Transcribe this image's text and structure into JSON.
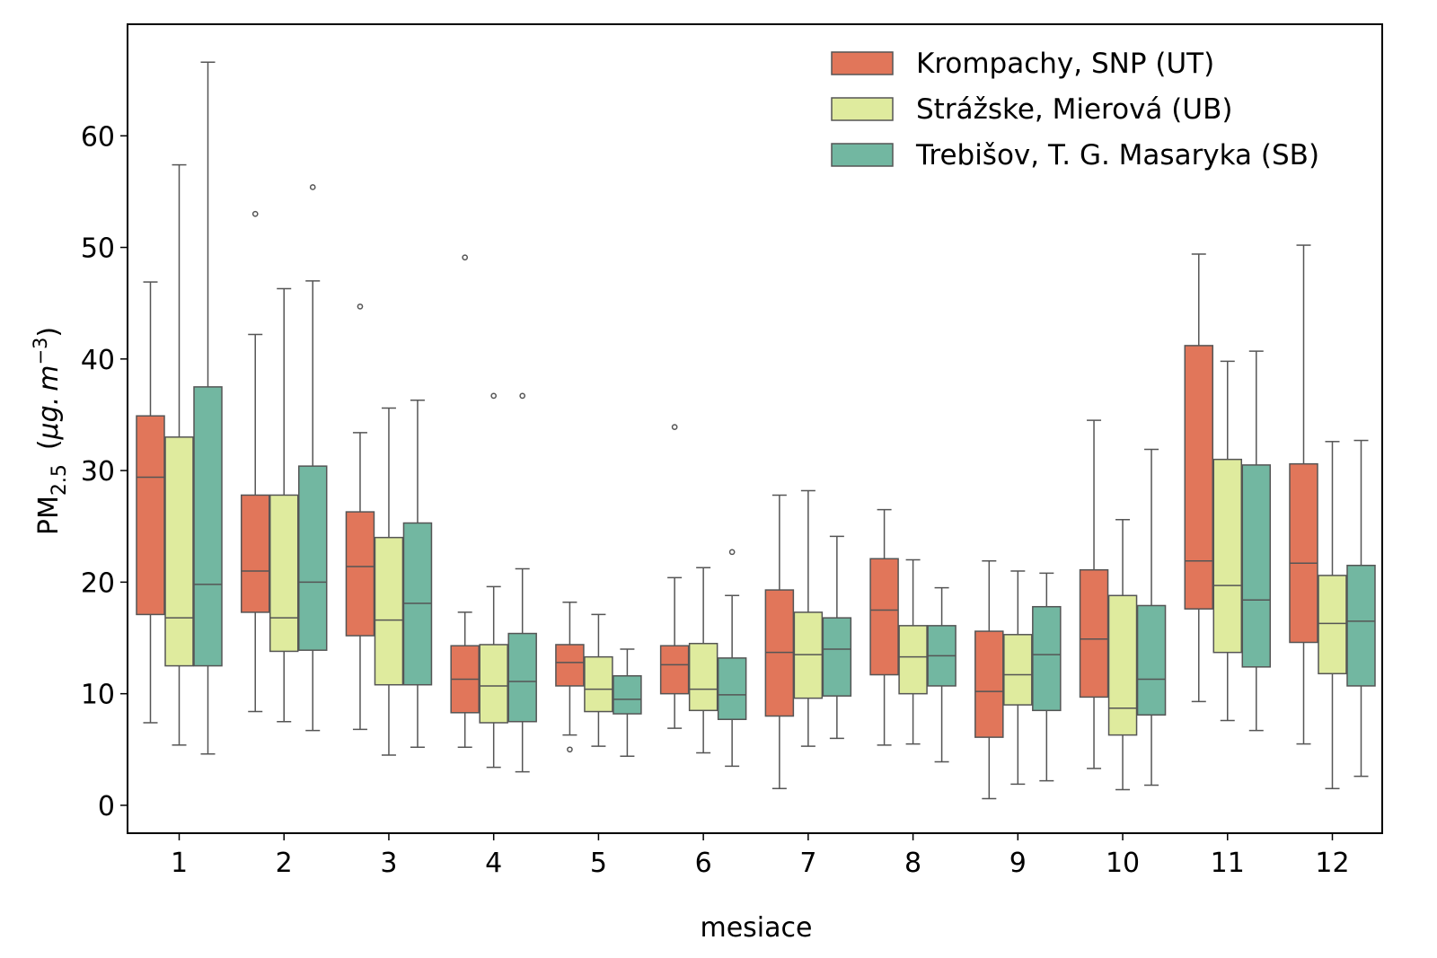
{
  "chart_data": {
    "type": "boxplot",
    "xlabel": "mesiace",
    "ylabel": {
      "base": "PM",
      "subscript": "2.5",
      "unit_open": "(",
      "unit_mu_g": "μg.",
      "unit_m": "m",
      "unit_exp": "−3",
      "unit_close": ")"
    },
    "ylim": [
      -2.5,
      70
    ],
    "yticks": [
      0,
      10,
      20,
      30,
      40,
      50,
      60
    ],
    "categories": [
      "1",
      "2",
      "3",
      "4",
      "5",
      "6",
      "7",
      "8",
      "9",
      "10",
      "11",
      "12"
    ],
    "legend_position": "top-right",
    "series": [
      {
        "name": "Krompachy, SNP (UT)",
        "color": "#e1765a",
        "boxes": [
          {
            "whislo": 7.4,
            "q1": 17.1,
            "med": 29.4,
            "q3": 34.9,
            "whishi": 46.9,
            "fliers": []
          },
          {
            "whislo": 8.4,
            "q1": 17.3,
            "med": 21.0,
            "q3": 27.8,
            "whishi": 42.2,
            "fliers": [
              53.0
            ]
          },
          {
            "whislo": 6.8,
            "q1": 15.2,
            "med": 21.4,
            "q3": 26.3,
            "whishi": 33.4,
            "fliers": [
              44.7
            ]
          },
          {
            "whislo": 5.2,
            "q1": 8.3,
            "med": 11.3,
            "q3": 14.3,
            "whishi": 17.3,
            "fliers": [
              49.1
            ]
          },
          {
            "whislo": 6.3,
            "q1": 10.7,
            "med": 12.8,
            "q3": 14.4,
            "whishi": 18.2,
            "fliers": [
              5.0
            ]
          },
          {
            "whislo": 6.9,
            "q1": 10.0,
            "med": 12.6,
            "q3": 14.3,
            "whishi": 20.4,
            "fliers": [
              33.9
            ]
          },
          {
            "whislo": 1.5,
            "q1": 8.0,
            "med": 13.7,
            "q3": 19.3,
            "whishi": 27.8,
            "fliers": []
          },
          {
            "whislo": 5.4,
            "q1": 11.7,
            "med": 17.5,
            "q3": 22.1,
            "whishi": 26.5,
            "fliers": []
          },
          {
            "whislo": 0.6,
            "q1": 6.1,
            "med": 10.2,
            "q3": 15.6,
            "whishi": 21.9,
            "fliers": []
          },
          {
            "whislo": 3.3,
            "q1": 9.7,
            "med": 14.9,
            "q3": 21.1,
            "whishi": 34.5,
            "fliers": []
          },
          {
            "whislo": 9.3,
            "q1": 17.6,
            "med": 21.9,
            "q3": 41.2,
            "whishi": 49.4,
            "fliers": []
          },
          {
            "whislo": 5.5,
            "q1": 14.6,
            "med": 21.7,
            "q3": 30.6,
            "whishi": 50.2,
            "fliers": []
          }
        ]
      },
      {
        "name": "Strážske, Mierová (UB)",
        "color": "#dfeb9e",
        "boxes": [
          {
            "whislo": 5.4,
            "q1": 12.5,
            "med": 16.8,
            "q3": 33.0,
            "whishi": 57.4,
            "fliers": []
          },
          {
            "whislo": 7.5,
            "q1": 13.8,
            "med": 16.8,
            "q3": 27.8,
            "whishi": 46.3,
            "fliers": []
          },
          {
            "whislo": 4.5,
            "q1": 10.8,
            "med": 16.6,
            "q3": 24.0,
            "whishi": 35.6,
            "fliers": []
          },
          {
            "whislo": 3.4,
            "q1": 7.4,
            "med": 10.7,
            "q3": 14.4,
            "whishi": 19.6,
            "fliers": [
              36.7
            ]
          },
          {
            "whislo": 5.3,
            "q1": 8.4,
            "med": 10.4,
            "q3": 13.3,
            "whishi": 17.1,
            "fliers": []
          },
          {
            "whislo": 4.7,
            "q1": 8.5,
            "med": 10.4,
            "q3": 14.5,
            "whishi": 21.3,
            "fliers": []
          },
          {
            "whislo": 5.3,
            "q1": 9.6,
            "med": 13.5,
            "q3": 17.3,
            "whishi": 28.2,
            "fliers": []
          },
          {
            "whislo": 5.5,
            "q1": 10.0,
            "med": 13.3,
            "q3": 16.1,
            "whishi": 22.0,
            "fliers": []
          },
          {
            "whislo": 1.9,
            "q1": 9.0,
            "med": 11.7,
            "q3": 15.3,
            "whishi": 21.0,
            "fliers": []
          },
          {
            "whislo": 1.4,
            "q1": 6.3,
            "med": 8.7,
            "q3": 18.8,
            "whishi": 25.6,
            "fliers": []
          },
          {
            "whislo": 7.6,
            "q1": 13.7,
            "med": 19.7,
            "q3": 31.0,
            "whishi": 39.8,
            "fliers": []
          },
          {
            "whislo": 1.5,
            "q1": 11.8,
            "med": 16.3,
            "q3": 20.6,
            "whishi": 32.6,
            "fliers": []
          }
        ]
      },
      {
        "name": "Trebišov, T. G. Masaryka (SB)",
        "color": "#72b7a1",
        "boxes": [
          {
            "whislo": 4.6,
            "q1": 12.5,
            "med": 19.8,
            "q3": 37.5,
            "whishi": 66.6,
            "fliers": []
          },
          {
            "whislo": 6.7,
            "q1": 13.9,
            "med": 20.0,
            "q3": 30.4,
            "whishi": 47.0,
            "fliers": [
              55.4
            ]
          },
          {
            "whislo": 5.2,
            "q1": 10.8,
            "med": 18.1,
            "q3": 25.3,
            "whishi": 36.3,
            "fliers": []
          },
          {
            "whislo": 3.0,
            "q1": 7.5,
            "med": 11.1,
            "q3": 15.4,
            "whishi": 21.2,
            "fliers": [
              36.7
            ]
          },
          {
            "whislo": 4.4,
            "q1": 8.2,
            "med": 9.5,
            "q3": 11.6,
            "whishi": 14.0,
            "fliers": []
          },
          {
            "whislo": 3.5,
            "q1": 7.7,
            "med": 9.9,
            "q3": 13.2,
            "whishi": 18.8,
            "fliers": [
              22.7
            ]
          },
          {
            "whislo": 6.0,
            "q1": 9.8,
            "med": 14.0,
            "q3": 16.8,
            "whishi": 24.1,
            "fliers": []
          },
          {
            "whislo": 3.9,
            "q1": 10.7,
            "med": 13.4,
            "q3": 16.1,
            "whishi": 19.5,
            "fliers": []
          },
          {
            "whislo": 2.2,
            "q1": 8.5,
            "med": 13.5,
            "q3": 17.8,
            "whishi": 20.8,
            "fliers": []
          },
          {
            "whislo": 1.8,
            "q1": 8.1,
            "med": 11.3,
            "q3": 17.9,
            "whishi": 31.9,
            "fliers": []
          },
          {
            "whislo": 6.7,
            "q1": 12.4,
            "med": 18.4,
            "q3": 30.5,
            "whishi": 40.7,
            "fliers": []
          },
          {
            "whislo": 2.6,
            "q1": 10.7,
            "med": 16.5,
            "q3": 21.5,
            "whishi": 32.7,
            "fliers": []
          }
        ]
      }
    ]
  }
}
